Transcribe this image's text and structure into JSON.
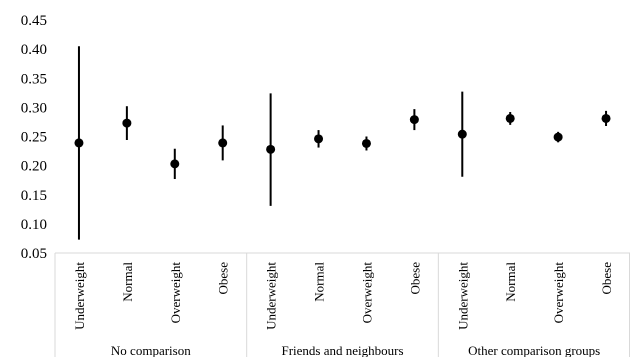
{
  "chart_data": {
    "type": "scatter",
    "title": "",
    "xlabel": "",
    "ylabel": "",
    "ylim": [
      0.05,
      0.45
    ],
    "yticks": [
      "0.05",
      "0.10",
      "0.15",
      "0.20",
      "0.25",
      "0.30",
      "0.35",
      "0.40",
      "0.45"
    ],
    "grid": false,
    "legend": "none",
    "groups": [
      {
        "label": "No comparison",
        "points": [
          {
            "category": "Underweight",
            "value": 0.239,
            "low": 0.073,
            "high": 0.405
          },
          {
            "category": "Normal",
            "value": 0.273,
            "low": 0.244,
            "high": 0.302
          },
          {
            "category": "Overweight",
            "value": 0.203,
            "low": 0.177,
            "high": 0.229
          },
          {
            "category": "Obese",
            "value": 0.239,
            "low": 0.209,
            "high": 0.269
          }
        ]
      },
      {
        "label": "Friends and neighbours",
        "points": [
          {
            "category": "Underweight",
            "value": 0.228,
            "low": 0.131,
            "high": 0.324
          },
          {
            "category": "Normal",
            "value": 0.246,
            "low": 0.231,
            "high": 0.261
          },
          {
            "category": "Overweight",
            "value": 0.238,
            "low": 0.226,
            "high": 0.25
          },
          {
            "category": "Obese",
            "value": 0.279,
            "low": 0.261,
            "high": 0.297
          }
        ]
      },
      {
        "label": "Other comparison groups",
        "points": [
          {
            "category": "Underweight",
            "value": 0.254,
            "low": 0.181,
            "high": 0.327
          },
          {
            "category": "Normal",
            "value": 0.281,
            "low": 0.27,
            "high": 0.292
          },
          {
            "category": "Overweight",
            "value": 0.249,
            "low": 0.24,
            "high": 0.258
          },
          {
            "category": "Obese",
            "value": 0.281,
            "low": 0.268,
            "high": 0.294
          }
        ]
      }
    ],
    "colors": {
      "marker": "#000000",
      "axis": "#d9d9d9"
    }
  }
}
